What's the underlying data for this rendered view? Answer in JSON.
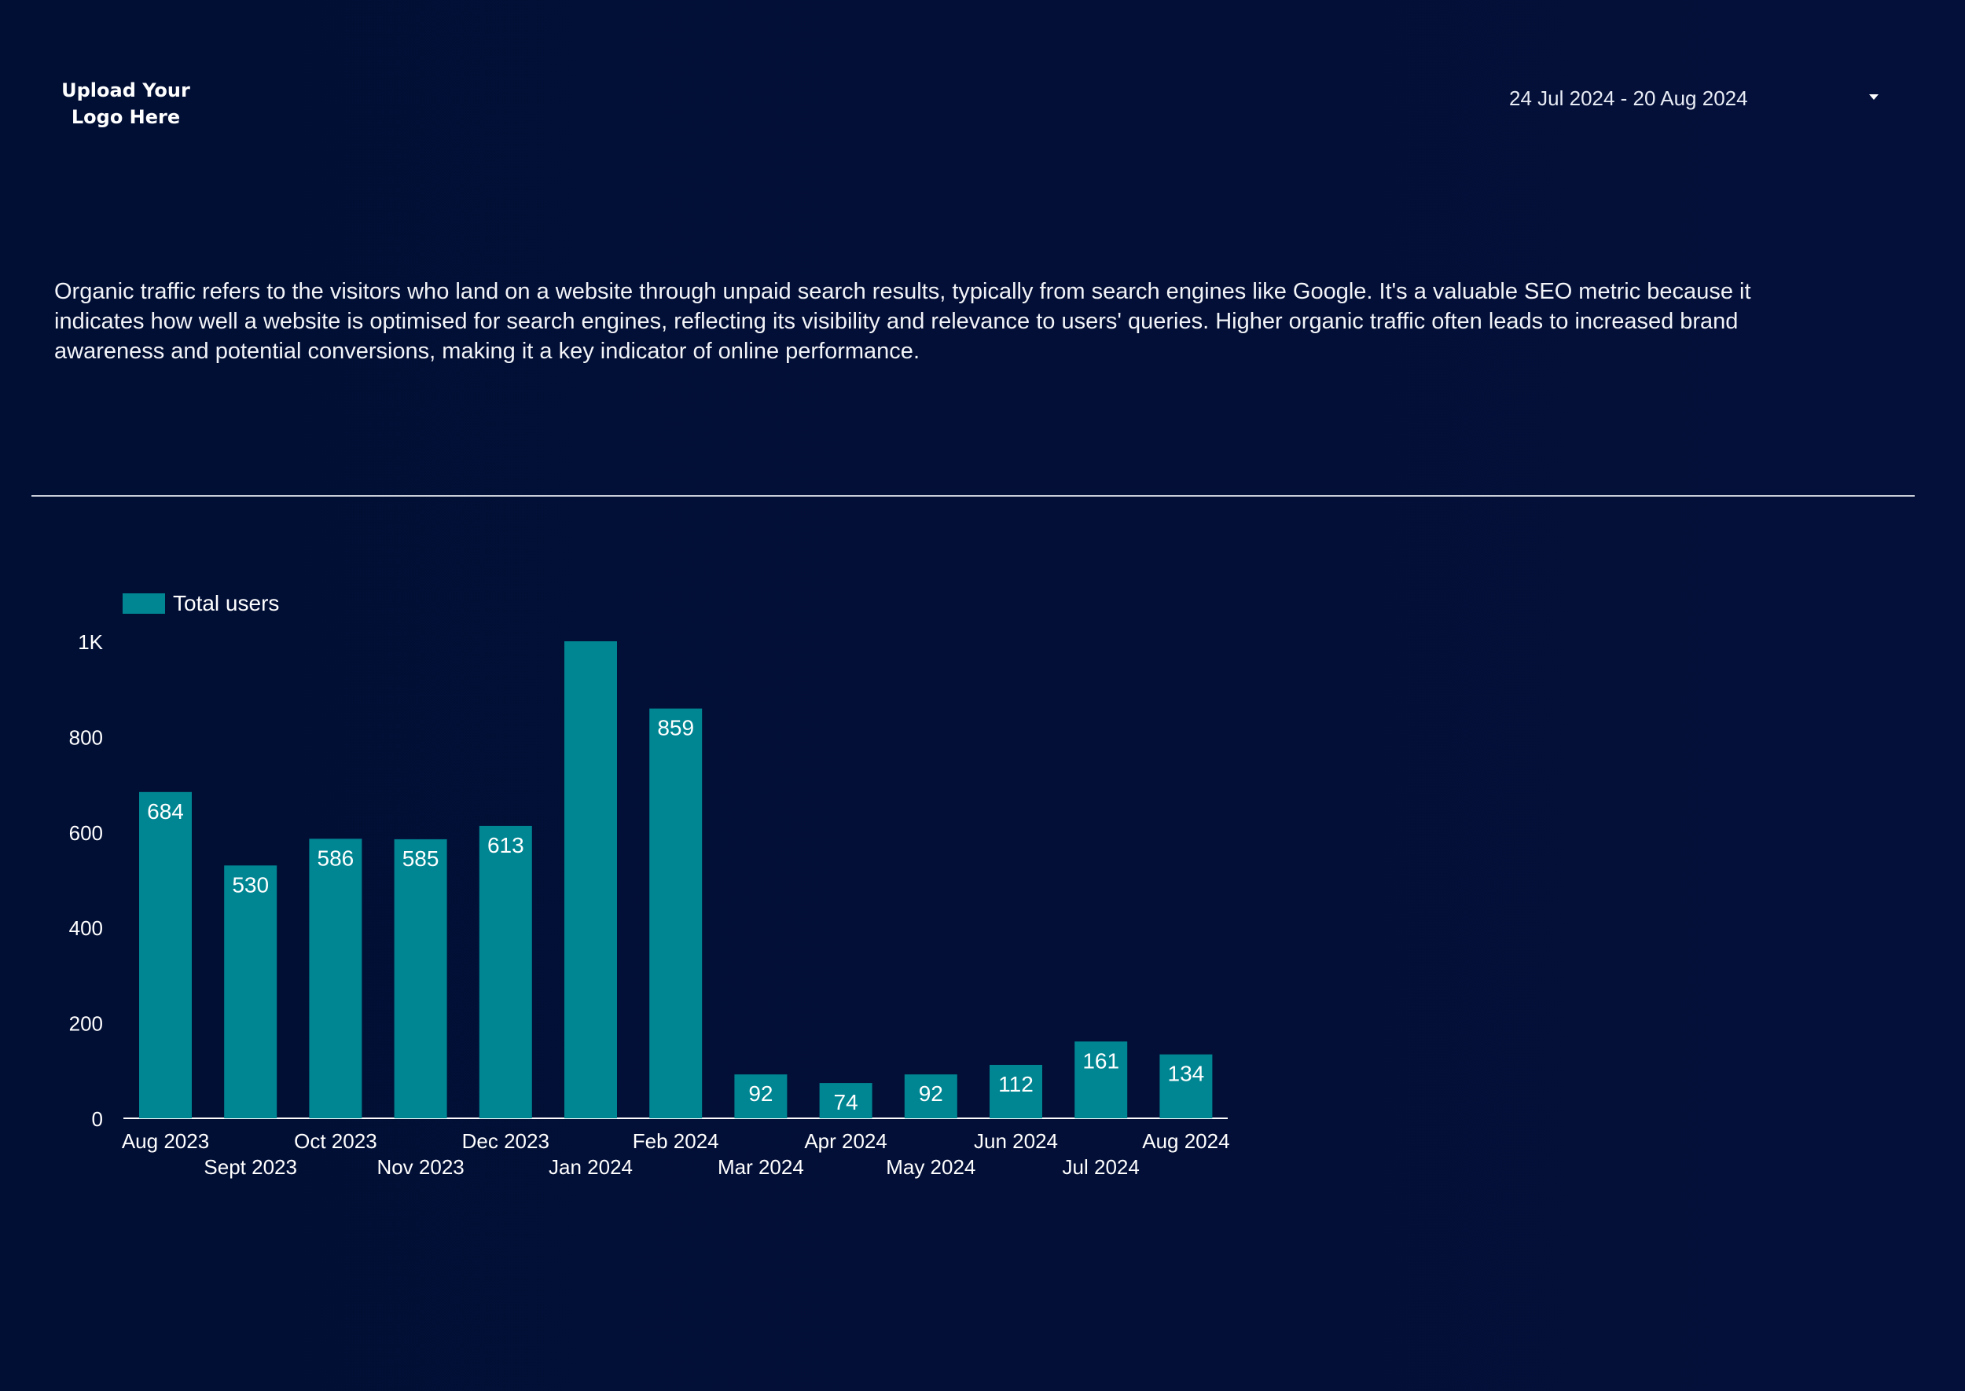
{
  "header": {
    "logo_text_line1": "Upload Your",
    "logo_text_line2": "Logo Here",
    "date_range": "24 Jul 2024 - 20 Aug 2024"
  },
  "description": "Organic traffic refers to the visitors who land on a website through unpaid search results, typically from search engines like Google. It's a valuable SEO metric because it indicates how well a website is optimised for search engines, reflecting its visibility and relevance to users' queries. Higher organic traffic often leads to increased brand awareness and potential conversions, making it a key indicator of online performance.",
  "colors": {
    "background": "#020f35",
    "bar": "#008692",
    "text": "#ffffff"
  },
  "icons": {
    "date_dropdown": "chevron-down-icon"
  },
  "chart_data": {
    "type": "bar",
    "categories": [
      "Aug 2023",
      "Sept 2023",
      "Oct 2023",
      "Nov 2023",
      "Dec 2023",
      "Jan 2024",
      "Feb 2024",
      "Mar 2024",
      "Apr 2024",
      "May 2024",
      "Jun 2024",
      "Jul 2024",
      "Aug 2024"
    ],
    "series": [
      {
        "name": "Total users",
        "values": [
          684,
          530,
          586,
          585,
          613,
          1000,
          859,
          92,
          74,
          92,
          112,
          161,
          134
        ],
        "labels": [
          "684",
          "530",
          "586",
          "585",
          "613",
          "",
          "859",
          "92",
          "74",
          "92",
          "112",
          "161",
          "134"
        ]
      }
    ],
    "yticks": [
      0,
      200,
      400,
      600,
      800,
      1000
    ],
    "ytick_labels": [
      "0",
      "200",
      "400",
      "600",
      "800",
      "1K"
    ],
    "ylim": [
      0,
      1000
    ],
    "legend": "top-left",
    "grid": false
  }
}
